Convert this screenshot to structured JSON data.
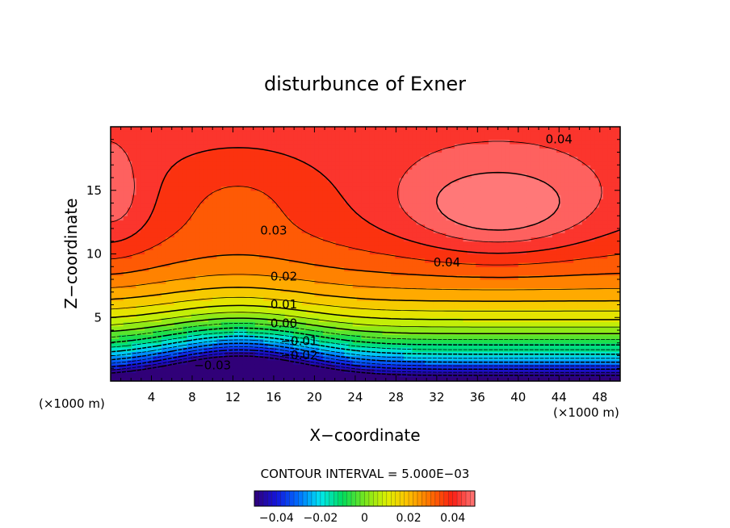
{
  "chart_data": {
    "type": "heatmap",
    "title": "disturbunce of Exner",
    "xlabel": "X−coordinate",
    "ylabel": "Z−coordinate",
    "x_unit_left": "(×1000 m)",
    "x_unit_right": "(×1000 m)",
    "xlim": [
      0,
      50
    ],
    "ylim": [
      0,
      20
    ],
    "x_ticks": [
      4,
      8,
      12,
      16,
      20,
      24,
      28,
      32,
      36,
      40,
      44,
      48
    ],
    "y_ticks": [
      5,
      10,
      15
    ],
    "contour_interval_text": "CONTOUR INTERVAL = 5.000E−03",
    "contour_interval": 0.005,
    "contour_labels": [
      {
        "text": "0.04",
        "x": 44,
        "y": 19
      },
      {
        "text": "0.04",
        "x": 33,
        "y": 9.3
      },
      {
        "text": "0.03",
        "x": 16,
        "y": 11.8
      },
      {
        "text": "0.02",
        "x": 17,
        "y": 8.2
      },
      {
        "text": "0.01",
        "x": 17,
        "y": 6.0
      },
      {
        "text": "0.00",
        "x": 17,
        "y": 4.5
      },
      {
        "text": "−0.01",
        "x": 18.5,
        "y": 3.1
      },
      {
        "text": "−0.02",
        "x": 18.5,
        "y": 2.0
      },
      {
        "text": "−0.03",
        "x": 10,
        "y": 1.2
      }
    ],
    "colorbar": {
      "range": [
        -0.05,
        0.05
      ],
      "tick_labels": [
        "−0.04",
        "−0.02",
        "0",
        "0.02",
        "0.04"
      ],
      "tick_values": [
        -0.04,
        -0.02,
        0,
        0.02,
        0.04
      ]
    },
    "grid": false,
    "legend": "bottom"
  }
}
